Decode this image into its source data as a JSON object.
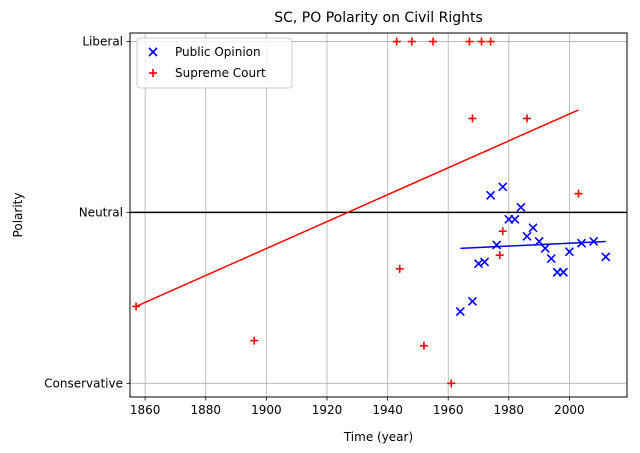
{
  "chart_data": {
    "type": "scatter",
    "title": "SC, PO Polarity on Civil Rights",
    "xlabel": "Time (year)",
    "ylabel": "Polarity",
    "xlim": [
      1855,
      2019
    ],
    "ylim": [
      -1.08,
      1.05
    ],
    "xticks": [
      1860,
      1880,
      1900,
      1920,
      1940,
      1960,
      1980,
      2000
    ],
    "yticks": [
      {
        "value": -1,
        "label": "Conservative"
      },
      {
        "value": 0,
        "label": "Neutral"
      },
      {
        "value": 1,
        "label": "Liberal"
      }
    ],
    "grid": true,
    "legend_position": "top-left",
    "series": [
      {
        "name": "Public Opinion",
        "marker": "x",
        "color": "#0000ff",
        "points": [
          [
            1964,
            -0.58
          ],
          [
            1968,
            -0.52
          ],
          [
            1970,
            -0.3
          ],
          [
            1972,
            -0.29
          ],
          [
            1974,
            0.1
          ],
          [
            1976,
            -0.19
          ],
          [
            1978,
            0.15
          ],
          [
            1980,
            -0.04
          ],
          [
            1982,
            -0.04
          ],
          [
            1984,
            0.03
          ],
          [
            1986,
            -0.14
          ],
          [
            1988,
            -0.09
          ],
          [
            1990,
            -0.17
          ],
          [
            1992,
            -0.21
          ],
          [
            1994,
            -0.27
          ],
          [
            1996,
            -0.35
          ],
          [
            1998,
            -0.35
          ],
          [
            2000,
            -0.23
          ],
          [
            2004,
            -0.18
          ],
          [
            2008,
            -0.17
          ],
          [
            2012,
            -0.26
          ]
        ]
      },
      {
        "name": "Supreme Court",
        "marker": "+",
        "color": "#ff0000",
        "points": [
          [
            1857,
            -0.55
          ],
          [
            1896,
            -0.75
          ],
          [
            1943,
            1.0
          ],
          [
            1944,
            -0.33
          ],
          [
            1948,
            1.0
          ],
          [
            1952,
            -0.78
          ],
          [
            1955,
            1.0
          ],
          [
            1961,
            -1.0
          ],
          [
            1967,
            1.0
          ],
          [
            1968,
            0.55
          ],
          [
            1971,
            1.0
          ],
          [
            1974,
            1.0
          ],
          [
            1977,
            -0.25
          ],
          [
            1978,
            -0.11
          ],
          [
            1986,
            0.55
          ],
          [
            2003,
            0.11
          ]
        ]
      }
    ],
    "fit_lines": [
      {
        "color": "#ff0000",
        "x": [
          1857,
          2003
        ],
        "y": [
          -0.55,
          0.6
        ]
      },
      {
        "color": "#0000ff",
        "x": [
          1964,
          2012
        ],
        "y": [
          -0.21,
          -0.17
        ]
      }
    ],
    "reference_line": {
      "y": 0,
      "color": "#000000"
    }
  }
}
